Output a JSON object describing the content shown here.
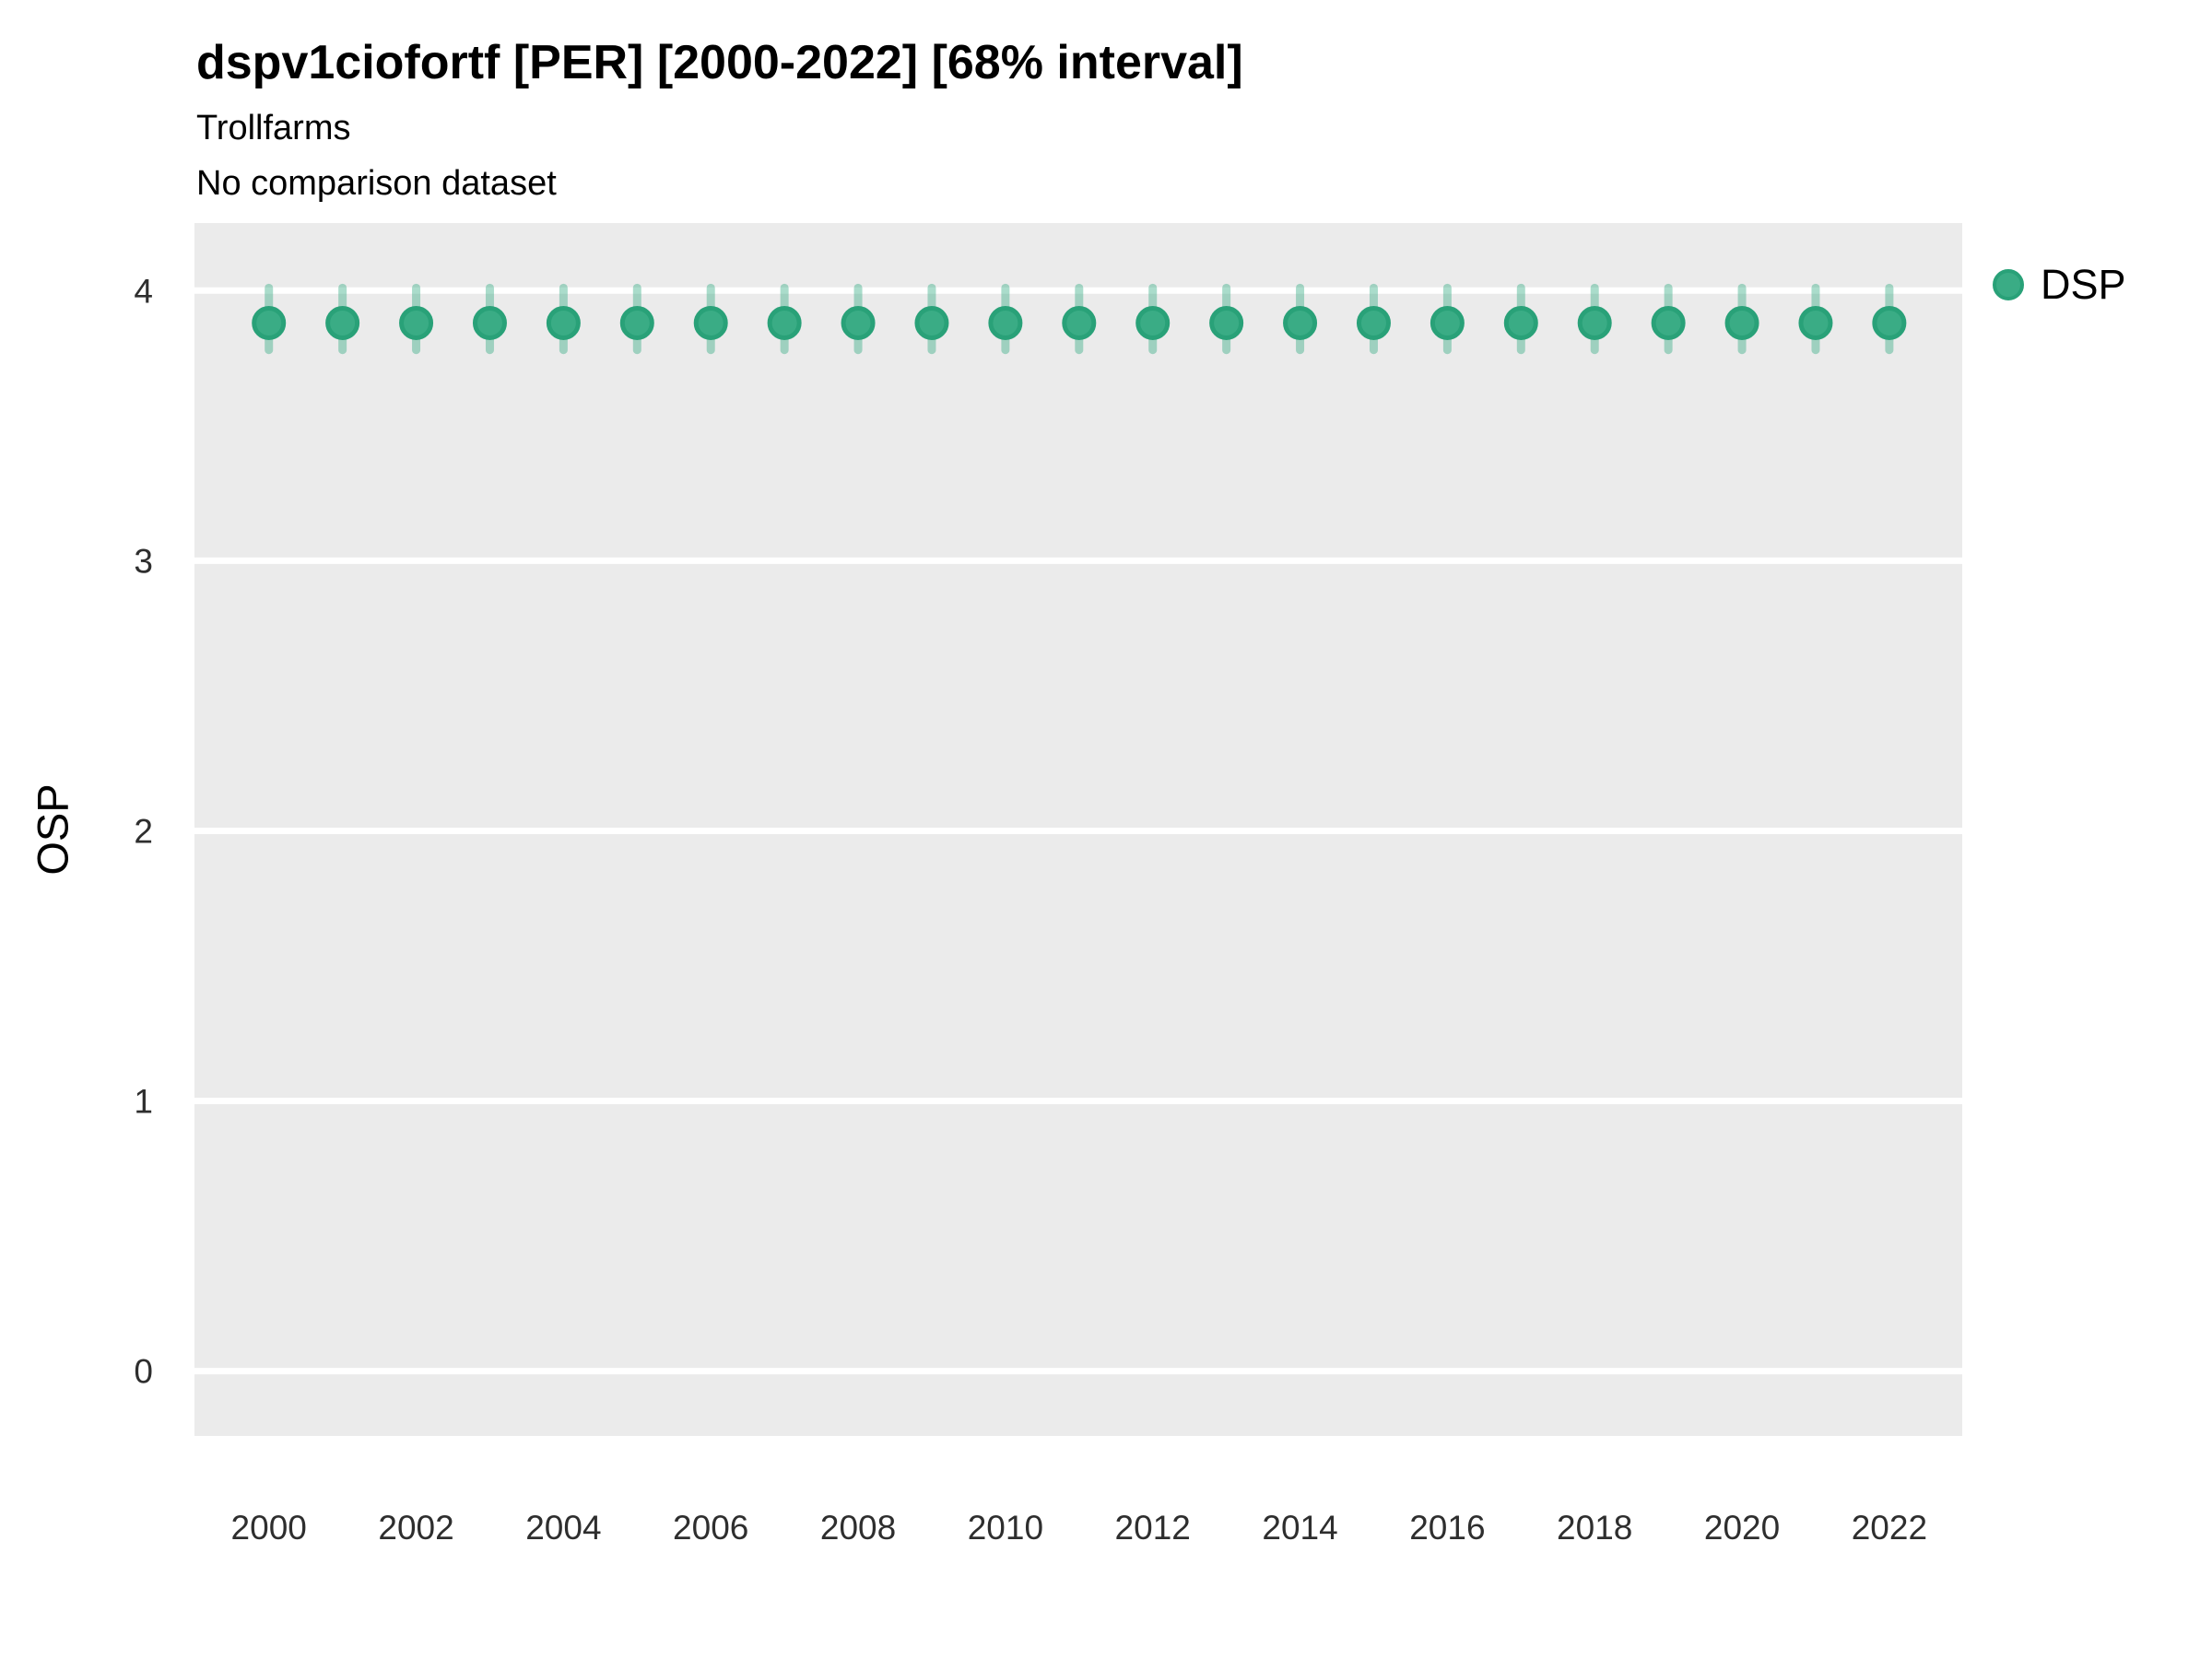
{
  "chart_data": {
    "type": "scatter",
    "title": "dspv1ciofortf [PER] [2000-2022] [68% interval]",
    "subtitle": "Trollfarms",
    "comparison_note": "No comparison dataset",
    "xlabel": "",
    "ylabel": "OSP",
    "interval_label": "68% interval",
    "legend_position": "right",
    "grid": "horizontal-only",
    "xlim": [
      1998.99,
      2022.99
    ],
    "ylim": [
      -0.24,
      4.25
    ],
    "x_ticks": [
      2000,
      2002,
      2004,
      2006,
      2008,
      2010,
      2012,
      2014,
      2016,
      2018,
      2020,
      2022
    ],
    "y_ticks": [
      0,
      1,
      2,
      3,
      4
    ],
    "panel_bg": "#EBEBEB",
    "grid_color": "#FFFFFF",
    "point_fill": "#3AAC85",
    "point_stroke": "#29A178",
    "errorbar_color": "rgba(53,171,132,0.42)",
    "series": [
      {
        "name": "DSP",
        "x": [
          2000,
          2001,
          2002,
          2003,
          2004,
          2005,
          2006,
          2007,
          2008,
          2009,
          2010,
          2011,
          2012,
          2013,
          2014,
          2015,
          2016,
          2017,
          2018,
          2019,
          2020,
          2021,
          2022
        ],
        "y": [
          3.88,
          3.88,
          3.88,
          3.88,
          3.88,
          3.88,
          3.88,
          3.88,
          3.88,
          3.88,
          3.88,
          3.88,
          3.88,
          3.88,
          3.88,
          3.88,
          3.88,
          3.88,
          3.88,
          3.88,
          3.88,
          3.88,
          3.88
        ],
        "y_lo": [
          3.78,
          3.78,
          3.78,
          3.78,
          3.78,
          3.78,
          3.78,
          3.78,
          3.78,
          3.78,
          3.78,
          3.78,
          3.78,
          3.78,
          3.78,
          3.78,
          3.78,
          3.78,
          3.78,
          3.78,
          3.78,
          3.78,
          3.78
        ],
        "y_hi": [
          4.01,
          4.01,
          4.01,
          4.01,
          4.01,
          4.01,
          4.01,
          4.01,
          4.01,
          4.01,
          4.01,
          4.01,
          4.01,
          4.01,
          4.01,
          4.01,
          4.01,
          4.01,
          4.01,
          4.01,
          4.01,
          4.01,
          4.01
        ]
      }
    ]
  }
}
